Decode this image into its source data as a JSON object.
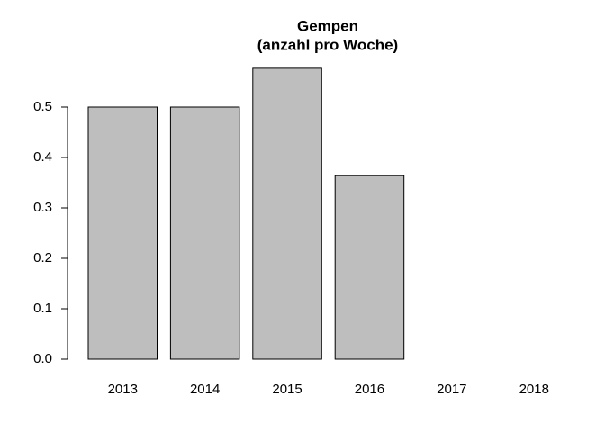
{
  "chart_data": {
    "type": "bar",
    "title": "Gempen",
    "subtitle": "(anzahl pro Woche)",
    "categories": [
      "2013",
      "2014",
      "2015",
      "2016",
      "2017",
      "2018"
    ],
    "values": [
      0.5,
      0.5,
      0.577,
      0.364,
      0,
      null
    ],
    "color": "#bebebe",
    "ylim": [
      0,
      0.6
    ],
    "yticks": [
      0.0,
      0.1,
      0.2,
      0.3,
      0.4,
      0.5
    ],
    "ytick_labels": [
      "0.0",
      "0.1",
      "0.2",
      "0.3",
      "0.4",
      "0.5"
    ]
  }
}
